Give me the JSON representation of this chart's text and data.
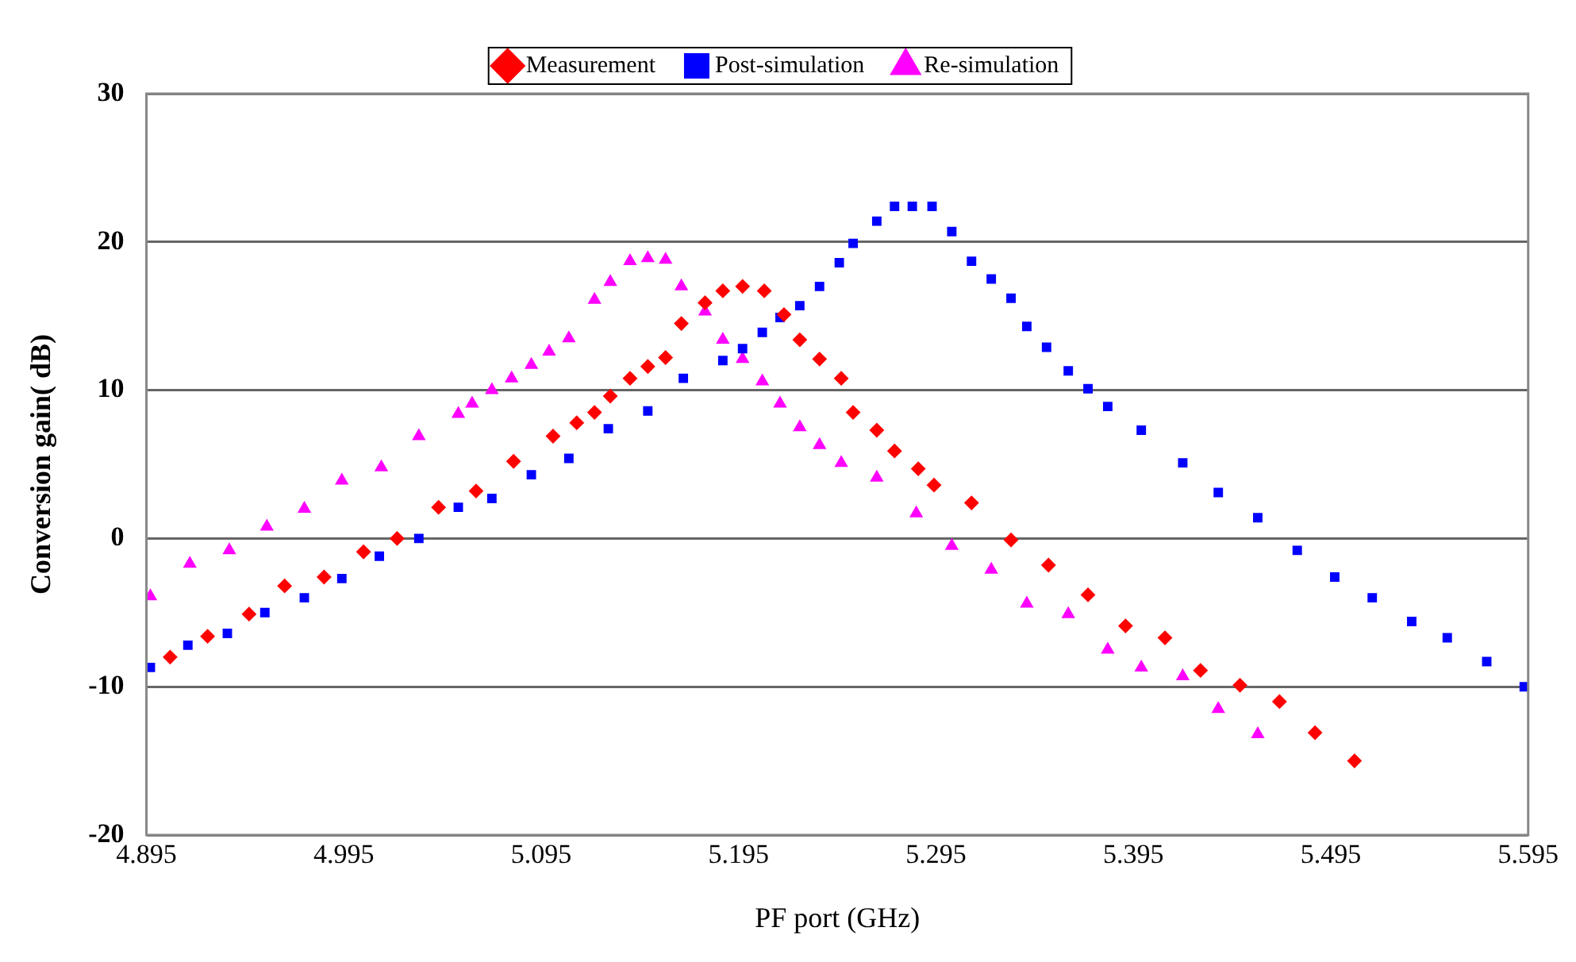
{
  "chart_data": {
    "type": "scatter",
    "xlabel": "PF port (GHz)",
    "ylabel": "Conversion gain( dB)",
    "xlim": [
      4.895,
      5.595
    ],
    "xticks": [
      4.895,
      4.995,
      5.095,
      5.195,
      5.295,
      5.395,
      5.495,
      5.595
    ],
    "ylim": [
      -20,
      30
    ],
    "yticks": [
      -20,
      -10,
      0,
      10,
      20,
      30
    ],
    "grid": "y",
    "legend": "top",
    "series": [
      {
        "name": "Measurement",
        "color": "#ff0000",
        "marker": "diamond",
        "x": [
          4.907,
          4.926,
          4.947,
          4.965,
          4.985,
          5.005,
          5.022,
          5.043,
          5.062,
          5.081,
          5.101,
          5.113,
          5.122,
          5.13,
          5.14,
          5.149,
          5.158,
          5.166,
          5.178,
          5.187,
          5.197,
          5.208,
          5.218,
          5.226,
          5.236,
          5.247,
          5.253,
          5.265,
          5.274,
          5.286,
          5.294,
          5.313,
          5.333,
          5.352,
          5.372,
          5.391,
          5.411,
          5.429,
          5.449,
          5.469,
          5.487,
          5.507
        ],
        "values": [
          -8.0,
          -6.6,
          -5.1,
          -3.2,
          -2.6,
          -0.9,
          0,
          2.1,
          3.2,
          5.2,
          6.9,
          7.8,
          8.5,
          9.6,
          10.8,
          11.6,
          12.2,
          14.5,
          15.9,
          16.7,
          17.0,
          16.7,
          15.1,
          13.4,
          12.1,
          10.8,
          8.5,
          7.3,
          5.9,
          4.7,
          3.6,
          2.4,
          -0.1,
          -1.8,
          -3.8,
          -5.9,
          -6.7,
          -8.9,
          -9.9,
          -11.0,
          -13.1,
          -15.0
        ]
      },
      {
        "name": "Post-simulation",
        "color": "#0000ff",
        "marker": "square",
        "x": [
          4.897,
          4.916,
          4.936,
          4.955,
          4.975,
          4.994,
          5.013,
          5.033,
          5.053,
          5.07,
          5.09,
          5.109,
          5.129,
          5.149,
          5.167,
          5.187,
          5.197,
          5.207,
          5.216,
          5.226,
          5.236,
          5.246,
          5.253,
          5.265,
          5.274,
          5.283,
          5.293,
          5.303,
          5.313,
          5.323,
          5.333,
          5.341,
          5.351,
          5.362,
          5.372,
          5.382,
          5.399,
          5.42,
          5.438,
          5.458,
          5.478,
          5.497,
          5.516,
          5.536,
          5.554,
          5.574,
          5.593
        ],
        "values": [
          -8.7,
          -7.2,
          -6.4,
          -5.0,
          -4.0,
          -2.7,
          -1.2,
          0.0,
          2.1,
          2.7,
          4.3,
          5.4,
          7.4,
          8.6,
          10.8,
          12.0,
          12.8,
          13.9,
          14.9,
          15.7,
          17.0,
          18.6,
          19.9,
          21.4,
          22.4,
          22.4,
          22.4,
          20.7,
          18.7,
          17.5,
          16.2,
          14.3,
          12.9,
          11.3,
          10.1,
          8.9,
          7.3,
          5.1,
          3.1,
          1.4,
          -0.8,
          -2.6,
          -4.0,
          -5.6,
          -6.7,
          -8.3,
          -10.0
        ]
      },
      {
        "name": "Re-simulation",
        "color": "#ff00ff",
        "marker": "triangle",
        "x": [
          4.897,
          4.917,
          4.937,
          4.956,
          4.975,
          4.994,
          5.014,
          5.033,
          5.053,
          5.06,
          5.07,
          5.08,
          5.09,
          5.099,
          5.109,
          5.122,
          5.13,
          5.14,
          5.149,
          5.158,
          5.166,
          5.178,
          5.187,
          5.197,
          5.207,
          5.216,
          5.226,
          5.236,
          5.247,
          5.265,
          5.285,
          5.303,
          5.323,
          5.341,
          5.362,
          5.382,
          5.399,
          5.42,
          5.438,
          5.458
        ],
        "values": [
          -3.9,
          -1.7,
          -0.8,
          0.8,
          2.0,
          3.9,
          4.8,
          6.9,
          8.4,
          9.1,
          10.0,
          10.8,
          11.7,
          12.6,
          13.5,
          16.1,
          17.3,
          18.7,
          18.9,
          18.8,
          17.0,
          15.3,
          13.4,
          12.1,
          10.6,
          9.1,
          7.5,
          6.3,
          5.1,
          4.1,
          1.7,
          -0.5,
          -2.1,
          -4.4,
          -5.1,
          -7.5,
          -8.7,
          -9.3,
          -11.5,
          -13.2
        ]
      }
    ]
  }
}
